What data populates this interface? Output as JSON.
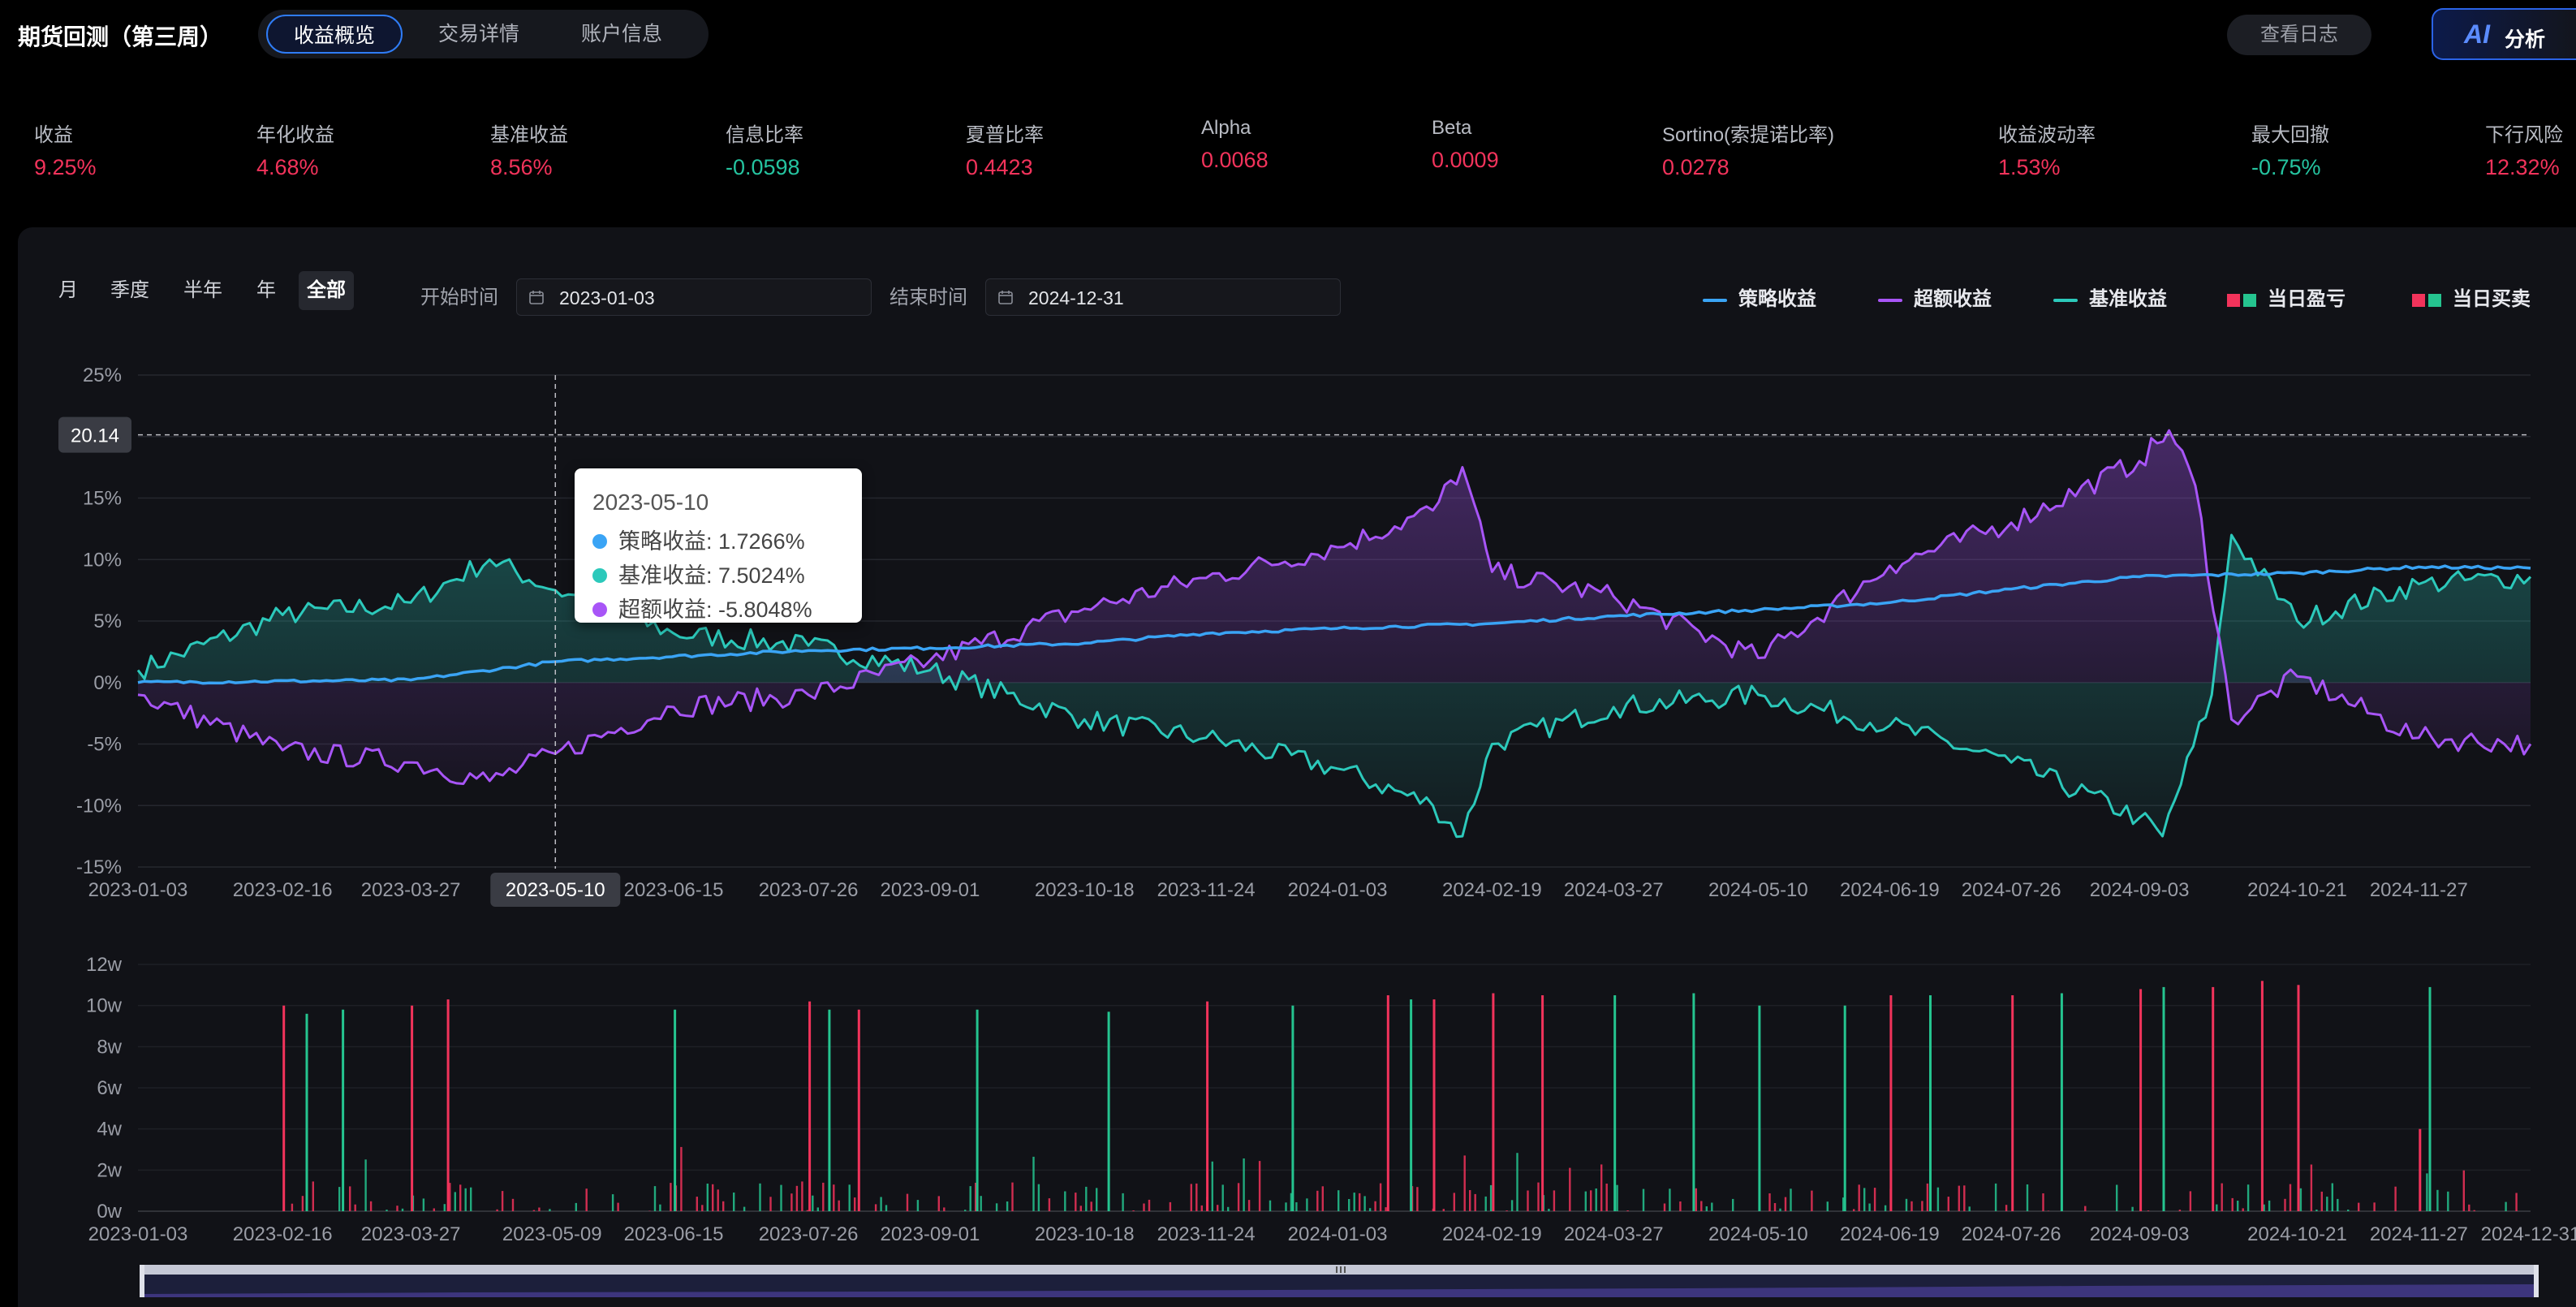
{
  "header": {
    "title": "期货回测（第三周）",
    "tabs": [
      {
        "label": "收益概览",
        "active": true
      },
      {
        "label": "交易详情",
        "active": false
      },
      {
        "label": "账户信息",
        "active": false
      }
    ],
    "log_button": "查看日志",
    "ai_button": {
      "logo": "AI",
      "label": "分析"
    }
  },
  "metrics": [
    {
      "label": "收益",
      "value": "9.25%",
      "tone": "pos"
    },
    {
      "label": "年化收益",
      "value": "4.68%",
      "tone": "pos"
    },
    {
      "label": "基准收益",
      "value": "8.56%",
      "tone": "pos"
    },
    {
      "label": "信息比率",
      "value": "-0.0598",
      "tone": "neg"
    },
    {
      "label": "夏普比率",
      "value": "0.4423",
      "tone": "pos"
    },
    {
      "label": "Alpha",
      "value": "0.0068",
      "tone": "pos"
    },
    {
      "label": "Beta",
      "value": "0.0009",
      "tone": "pos"
    },
    {
      "label": "Sortino(索提诺比率)",
      "value": "0.0278",
      "tone": "pos"
    },
    {
      "label": "收益波动率",
      "value": "1.53%",
      "tone": "pos"
    },
    {
      "label": "最大回撤",
      "value": "-0.75%",
      "tone": "neg"
    },
    {
      "label": "下行风险",
      "value": "12.32%",
      "tone": "pos"
    }
  ],
  "filters": {
    "periods": [
      "月",
      "季度",
      "半年",
      "年",
      "全部"
    ],
    "active_period": "全部",
    "start_label": "开始时间",
    "start_date": "2023-01-03",
    "end_label": "结束时间",
    "end_date": "2024-12-31"
  },
  "legend": [
    {
      "label": "策略收益",
      "color": "#3aa4f5",
      "kind": "line"
    },
    {
      "label": "超额收益",
      "color": "#a855f7",
      "kind": "line"
    },
    {
      "label": "基准收益",
      "color": "#2cc9bb",
      "kind": "line"
    },
    {
      "label": "当日盈亏",
      "kind": "squares"
    },
    {
      "label": "当日买卖",
      "kind": "squares"
    }
  ],
  "colors": {
    "strategy": "#3aa4f5",
    "excess": "#a855f7",
    "benchmark": "#2cc9bb",
    "up": "#f2335b",
    "down": "#25c48f"
  },
  "tooltip": {
    "date": "2023-05-10",
    "rows": [
      {
        "label": "策略收益: 1.7266%",
        "color": "#3aa4f5"
      },
      {
        "label": "基准收益: 7.5024%",
        "color": "#2cc9bb"
      },
      {
        "label": "超额收益: -5.8048%",
        "color": "#a855f7"
      }
    ]
  },
  "crosshair": {
    "y_value_label": "20.14",
    "x_date_label": "2023-05-10"
  },
  "chart_data": [
    {
      "type": "line",
      "x_range": [
        "2023-01-03",
        "2024-12-31"
      ],
      "x_ticks": [
        "2023-01-03",
        "2023-02-16",
        "2023-03-27",
        "2023-05-10",
        "2023-06-15",
        "2023-07-26",
        "2023-09-01",
        "2023-10-18",
        "2023-11-24",
        "2024-01-03",
        "2024-02-19",
        "2024-03-27",
        "2024-05-10",
        "2024-06-19",
        "2024-07-26",
        "2024-09-03",
        "2024-10-21",
        "2024-11-27"
      ],
      "y_ticks": [
        "25%",
        "20%",
        "15%",
        "10%",
        "5%",
        "0%",
        "-5%",
        "-10%",
        "-15%"
      ],
      "ylim": [
        -15,
        25
      ],
      "y_unit": "%",
      "grid": true,
      "series": [
        {
          "name": "策略收益",
          "color": "#3aa4f5",
          "points": [
            [
              "2023-01-03",
              0
            ],
            [
              "2023-03-27",
              0.2
            ],
            [
              "2023-05-10",
              1.7
            ],
            [
              "2023-07-26",
              2.6
            ],
            [
              "2023-09-01",
              2.8
            ],
            [
              "2023-10-18",
              3.2
            ],
            [
              "2023-11-24",
              4.0
            ],
            [
              "2024-01-03",
              4.4
            ],
            [
              "2024-02-19",
              4.8
            ],
            [
              "2024-03-27",
              5.4
            ],
            [
              "2024-05-10",
              5.9
            ],
            [
              "2024-06-19",
              6.5
            ],
            [
              "2024-07-26",
              7.6
            ],
            [
              "2024-09-03",
              8.6
            ],
            [
              "2024-10-21",
              8.9
            ],
            [
              "2024-11-27",
              9.4
            ],
            [
              "2024-12-31",
              9.3
            ]
          ]
        },
        {
          "name": "基准收益",
          "color": "#2cc9bb",
          "points": [
            [
              "2023-01-03",
              1
            ],
            [
              "2023-02-16",
              5.5
            ],
            [
              "2023-03-27",
              6.5
            ],
            [
              "2023-04-20",
              10
            ],
            [
              "2023-05-10",
              7.5
            ],
            [
              "2023-06-15",
              4
            ],
            [
              "2023-07-26",
              3
            ],
            [
              "2023-09-01",
              1
            ],
            [
              "2023-10-18",
              -3
            ],
            [
              "2023-11-24",
              -4.5
            ],
            [
              "2024-01-03",
              -7
            ],
            [
              "2024-02-01",
              -10
            ],
            [
              "2024-02-10",
              -12.5
            ],
            [
              "2024-02-19",
              -5
            ],
            [
              "2024-03-27",
              -2
            ],
            [
              "2024-05-10",
              -1
            ],
            [
              "2024-06-19",
              -3.5
            ],
            [
              "2024-07-26",
              -6.5
            ],
            [
              "2024-09-03",
              -11
            ],
            [
              "2024-09-10",
              -12.5
            ],
            [
              "2024-09-25",
              -1
            ],
            [
              "2024-10-01",
              12
            ],
            [
              "2024-10-21",
              5
            ],
            [
              "2024-11-27",
              8
            ],
            [
              "2024-12-31",
              8.6
            ]
          ]
        },
        {
          "name": "超额收益",
          "color": "#a855f7",
          "points": [
            [
              "2023-01-03",
              -1
            ],
            [
              "2023-02-16",
              -5.5
            ],
            [
              "2023-03-27",
              -6.5
            ],
            [
              "2023-04-20",
              -8
            ],
            [
              "2023-05-10",
              -5.8
            ],
            [
              "2023-06-15",
              -2
            ],
            [
              "2023-07-26",
              -1
            ],
            [
              "2023-09-01",
              1.8
            ],
            [
              "2023-10-18",
              6
            ],
            [
              "2023-11-24",
              8.5
            ],
            [
              "2024-01-03",
              11
            ],
            [
              "2024-02-01",
              14
            ],
            [
              "2024-02-10",
              17.5
            ],
            [
              "2024-02-19",
              9
            ],
            [
              "2024-03-27",
              7
            ],
            [
              "2024-05-10",
              2
            ],
            [
              "2024-06-19",
              9.5
            ],
            [
              "2024-07-26",
              13
            ],
            [
              "2024-09-03",
              18
            ],
            [
              "2024-09-12",
              20.5
            ],
            [
              "2024-09-20",
              16
            ],
            [
              "2024-10-01",
              -3
            ],
            [
              "2024-10-21",
              0.5
            ],
            [
              "2024-11-27",
              -4.5
            ],
            [
              "2024-12-31",
              -5
            ]
          ]
        }
      ]
    },
    {
      "type": "bar",
      "x_ticks": [
        "2023-01-03",
        "2023-02-16",
        "2023-03-27",
        "2023-05-09",
        "2023-06-15",
        "2023-07-26",
        "2023-09-01",
        "2023-10-18",
        "2023-11-24",
        "2024-01-03",
        "2024-02-19",
        "2024-03-27",
        "2024-05-10",
        "2024-06-19",
        "2024-07-26",
        "2024-09-03",
        "2024-10-21",
        "2024-11-27",
        "2024-12-31"
      ],
      "y_ticks": [
        "12w",
        "10w",
        "8w",
        "6w",
        "4w",
        "2w",
        "0w"
      ],
      "ylim": [
        0,
        12
      ],
      "y_unit": "w",
      "series": [
        {
          "name": "当日盈亏",
          "color": "#f2335b",
          "points": [
            [
              "2023-02-16",
              10
            ],
            [
              "2023-03-27",
              10
            ],
            [
              "2023-04-07",
              10.3
            ],
            [
              "2023-07-26",
              10.2
            ],
            [
              "2023-08-10",
              9.8
            ],
            [
              "2023-11-24",
              10.2
            ],
            [
              "2024-01-18",
              10.5
            ],
            [
              "2024-02-01",
              10.3
            ],
            [
              "2024-02-19",
              10.6
            ],
            [
              "2024-03-05",
              10.5
            ],
            [
              "2024-06-19",
              10.5
            ],
            [
              "2024-07-26",
              10.5
            ],
            [
              "2024-09-03",
              10.8
            ],
            [
              "2024-09-25",
              10.9
            ],
            [
              "2024-10-10",
              11.2
            ],
            [
              "2024-10-21",
              11
            ],
            [
              "2024-11-27",
              4
            ]
          ]
        },
        {
          "name": "当日买卖",
          "color": "#25c48f",
          "points": [
            [
              "2023-02-23",
              9.6
            ],
            [
              "2023-03-06",
              9.8
            ],
            [
              "2023-06-15",
              9.8
            ],
            [
              "2023-08-01",
              9.8
            ],
            [
              "2023-09-15",
              9.8
            ],
            [
              "2023-10-25",
              9.7
            ],
            [
              "2023-12-20",
              10
            ],
            [
              "2024-01-25",
              10.3
            ],
            [
              "2024-03-27",
              10.5
            ],
            [
              "2024-04-20",
              10.6
            ],
            [
              "2024-05-10",
              10
            ],
            [
              "2024-06-05",
              10
            ],
            [
              "2024-07-01",
              10.5
            ],
            [
              "2024-08-10",
              10.6
            ],
            [
              "2024-09-10",
              10.9
            ],
            [
              "2024-11-30",
              10.9
            ]
          ]
        }
      ]
    }
  ]
}
